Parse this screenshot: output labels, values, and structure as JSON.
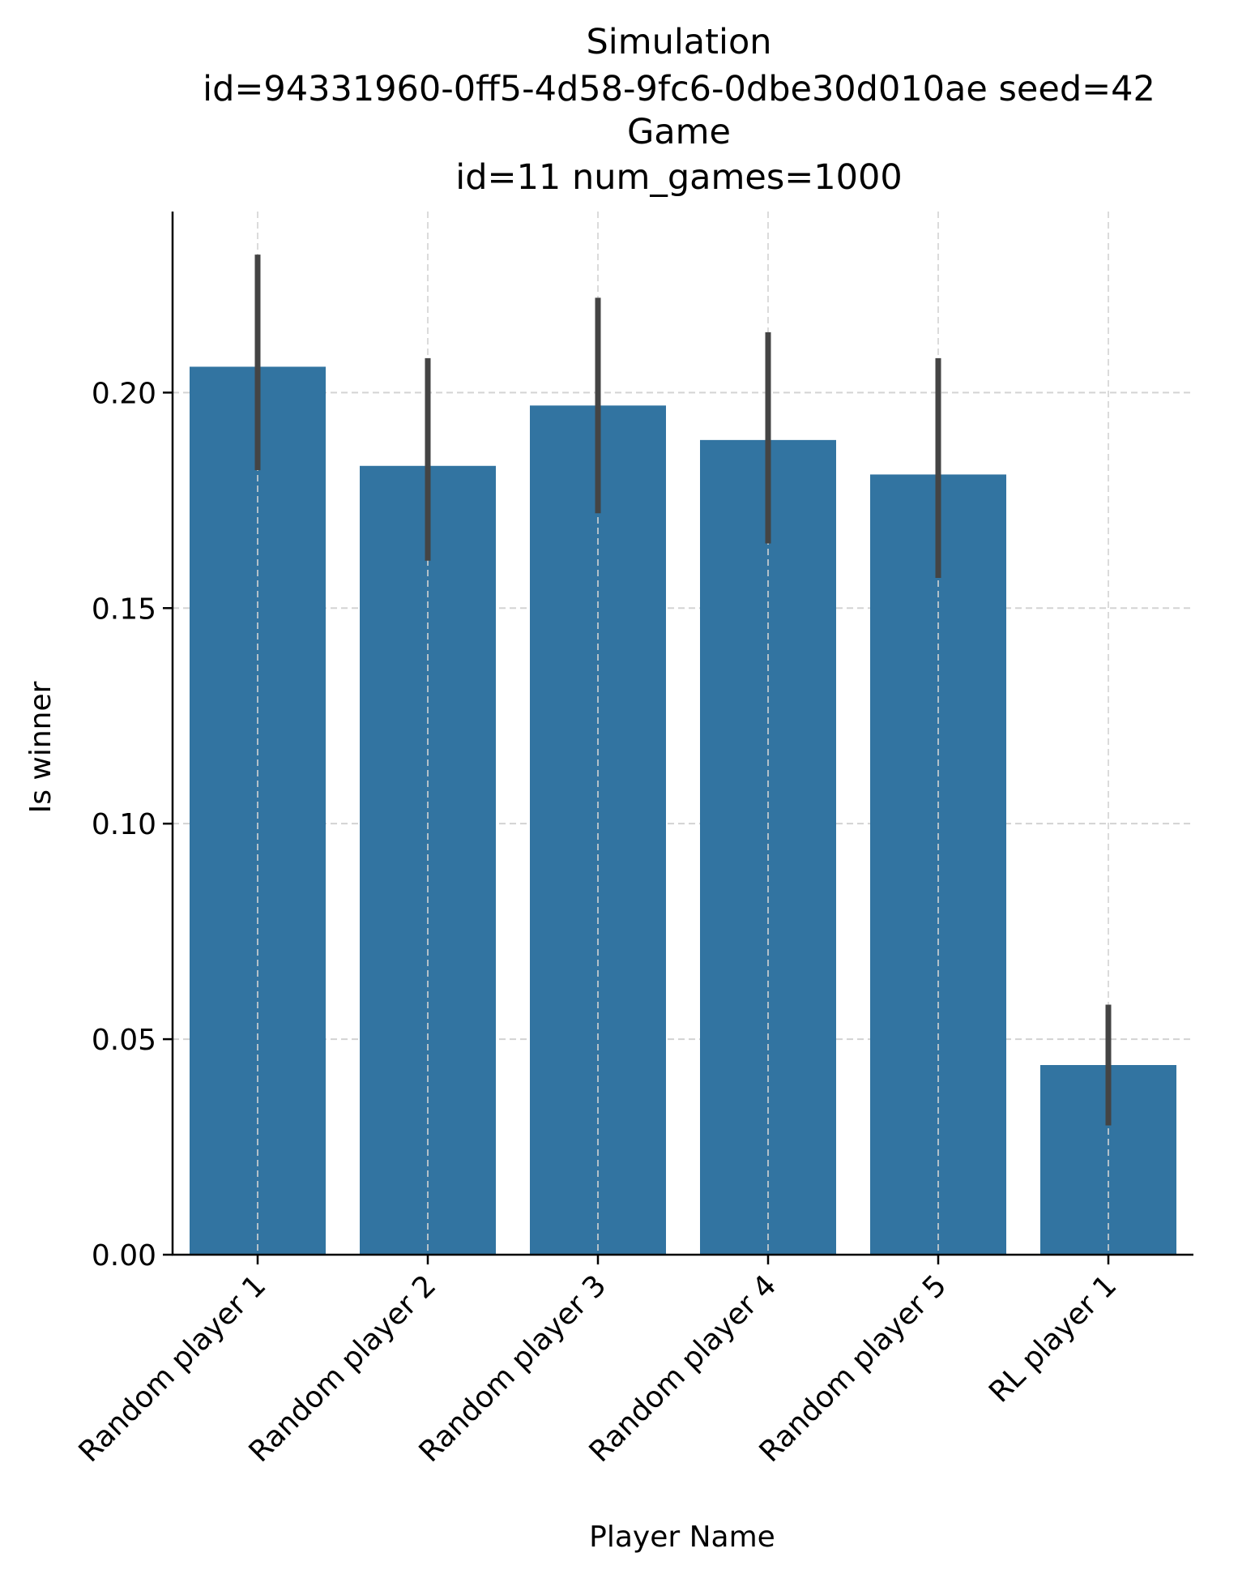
{
  "chart_data": {
    "type": "bar",
    "title_lines": [
      "Simulation",
      "id=94331960-0ff5-4d58-9fc6-0dbe30d010ae seed=42",
      "Game",
      "id=11 num_games=1000"
    ],
    "xlabel": "Player Name",
    "ylabel": "Is winner",
    "categories": [
      "Random player 1",
      "Random player 2",
      "Random player 3",
      "Random player 4",
      "Random player 5",
      "RL player 1"
    ],
    "values": [
      0.206,
      0.183,
      0.197,
      0.189,
      0.181,
      0.044
    ],
    "error_low": [
      0.182,
      0.161,
      0.172,
      0.165,
      0.157,
      0.03
    ],
    "error_high": [
      0.232,
      0.208,
      0.222,
      0.214,
      0.208,
      0.058
    ],
    "ylim": [
      0,
      0.242
    ],
    "yticks": [
      0.0,
      0.05,
      0.1,
      0.15,
      0.2
    ],
    "ytick_labels": [
      "0.00",
      "0.05",
      "0.10",
      "0.15",
      "0.20"
    ],
    "grid": true,
    "colors": {
      "bar": "#3274a1",
      "error": "#444444",
      "grid": "#d3d3d3",
      "axis": "#000000"
    }
  }
}
